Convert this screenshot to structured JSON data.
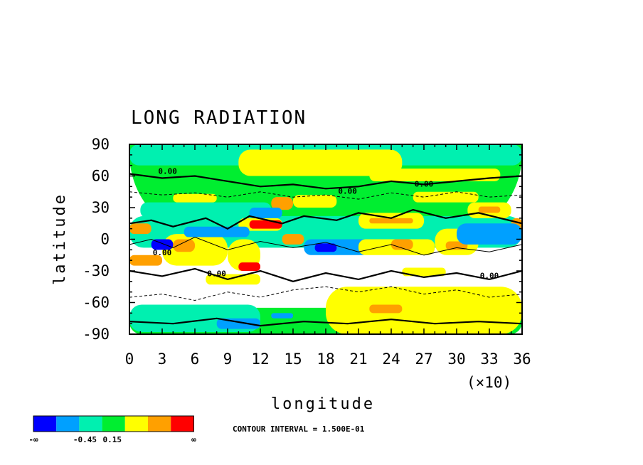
{
  "chart_data": {
    "type": "heatmap",
    "title": "LONG RADIATION",
    "xlabel": "longitude",
    "ylabel": "latitude",
    "x_multiplier_label": "(×10)",
    "x_ticks": [
      "0",
      "3",
      "6",
      "9",
      "12",
      "15",
      "18",
      "21",
      "24",
      "27",
      "30",
      "33",
      "36"
    ],
    "y_ticks": [
      "90",
      "60",
      "30",
      "0",
      "-30",
      "-60",
      "-90"
    ],
    "xlim": [
      0,
      36
    ],
    "ylim": [
      -90,
      90
    ],
    "contour_interval_text": "CONTOUR INTERVAL = 1.500E-01",
    "contour_line_labels": [
      "0.00",
      "0.00",
      "0.00",
      "0.00",
      "0.00",
      "0.00"
    ],
    "colorbar": {
      "colors": [
        "#0000ff",
        "#00a0ff",
        "#00f0b0",
        "#00ee30",
        "#ffff00",
        "#ffa000",
        "#ff0000"
      ],
      "labels": [
        "-∞",
        "-0.45",
        "0.15",
        "∞"
      ]
    },
    "regions": [
      {
        "lon": 0,
        "lat": 0,
        "w": 36,
        "h": 180,
        "level": 3
      },
      {
        "lon": 0,
        "lat": 70,
        "w": 36,
        "h": 20,
        "level": 2
      },
      {
        "lon": 0,
        "lat": -90,
        "w": 36,
        "h": 25,
        "level": 3
      },
      {
        "lon": 10,
        "lat": 60,
        "w": 15,
        "h": 25,
        "level": 4
      },
      {
        "lon": 22,
        "lat": 55,
        "w": 12,
        "h": 12,
        "level": 4
      },
      {
        "lon": 18,
        "lat": -90,
        "w": 18,
        "h": 45,
        "level": 4
      },
      {
        "lon": 22,
        "lat": -70,
        "w": 3,
        "h": 8,
        "level": 5
      },
      {
        "lon": 0,
        "lat": -8,
        "w": 36,
        "h": 30,
        "level": 2
      },
      {
        "lon": 0,
        "lat": -88,
        "w": 12,
        "h": 26,
        "level": 2
      },
      {
        "lon": 1,
        "lat": 20,
        "w": 12,
        "h": 15,
        "level": 2
      },
      {
        "lon": 3,
        "lat": -25,
        "w": 6,
        "h": 30,
        "level": 4
      },
      {
        "lon": 9,
        "lat": -30,
        "w": 3,
        "h": 30,
        "level": 4
      },
      {
        "lon": 0,
        "lat": 5,
        "w": 2,
        "h": 10,
        "level": 5
      },
      {
        "lon": 0,
        "lat": -25,
        "w": 3,
        "h": 10,
        "level": 5
      },
      {
        "lon": 4,
        "lat": -12,
        "w": 2,
        "h": 12,
        "level": 5
      },
      {
        "lon": 10,
        "lat": -30,
        "w": 2,
        "h": 8,
        "level": 6
      },
      {
        "lon": 10,
        "lat": 8,
        "w": 4,
        "h": 12,
        "level": 4
      },
      {
        "lon": 11,
        "lat": 10,
        "w": 3,
        "h": 8,
        "level": 6
      },
      {
        "lon": 13,
        "lat": 28,
        "w": 2,
        "h": 12,
        "level": 5
      },
      {
        "lon": 14,
        "lat": -5,
        "w": 2,
        "h": 10,
        "level": 5
      },
      {
        "lon": 16,
        "lat": -15,
        "w": 6,
        "h": 15,
        "level": 1
      },
      {
        "lon": 17,
        "lat": -12,
        "w": 2,
        "h": 8,
        "level": 0
      },
      {
        "lon": 5,
        "lat": 2,
        "w": 6,
        "h": 10,
        "level": 1
      },
      {
        "lon": 2,
        "lat": -10,
        "w": 2,
        "h": 10,
        "level": 0
      },
      {
        "lon": 11,
        "lat": 20,
        "w": 3,
        "h": 10,
        "level": 1
      },
      {
        "lon": 21,
        "lat": 10,
        "w": 6,
        "h": 15,
        "level": 4
      },
      {
        "lon": 22,
        "lat": 15,
        "w": 4,
        "h": 5,
        "level": 5
      },
      {
        "lon": 21,
        "lat": -15,
        "w": 7,
        "h": 15,
        "level": 4
      },
      {
        "lon": 24,
        "lat": -10,
        "w": 2,
        "h": 10,
        "level": 5
      },
      {
        "lon": 28,
        "lat": -15,
        "w": 4,
        "h": 25,
        "level": 4
      },
      {
        "lon": 29,
        "lat": -10,
        "w": 2,
        "h": 8,
        "level": 5
      },
      {
        "lon": 31,
        "lat": 20,
        "w": 4,
        "h": 15,
        "level": 4
      },
      {
        "lon": 32,
        "lat": 25,
        "w": 2,
        "h": 6,
        "level": 5
      },
      {
        "lon": 35,
        "lat": 5,
        "w": 1,
        "h": 15,
        "level": 5
      },
      {
        "lon": 30,
        "lat": -5,
        "w": 6,
        "h": 20,
        "level": 1
      },
      {
        "lon": 25,
        "lat": -35,
        "w": 4,
        "h": 8,
        "level": 4
      },
      {
        "lon": 26,
        "lat": 35,
        "w": 6,
        "h": 10,
        "level": 4
      },
      {
        "lon": 4,
        "lat": 35,
        "w": 4,
        "h": 8,
        "level": 4
      },
      {
        "lon": 15,
        "lat": 30,
        "w": 4,
        "h": 12,
        "level": 4
      },
      {
        "lon": 7,
        "lat": -43,
        "w": 5,
        "h": 10,
        "level": 4
      },
      {
        "lon": 8,
        "lat": -85,
        "w": 4,
        "h": 10,
        "level": 1
      },
      {
        "lon": 13,
        "lat": -75,
        "w": 2,
        "h": 5,
        "level": 1
      }
    ],
    "contour_segments": [
      [
        [
          0,
          62
        ],
        [
          3,
          58
        ],
        [
          6,
          60
        ],
        [
          9,
          55
        ],
        [
          12,
          50
        ],
        [
          15,
          52
        ],
        [
          18,
          48
        ],
        [
          21,
          50
        ],
        [
          24,
          55
        ],
        [
          27,
          52
        ],
        [
          30,
          55
        ],
        [
          33,
          58
        ],
        [
          36,
          60
        ]
      ],
      [
        [
          0,
          45
        ],
        [
          3,
          42
        ],
        [
          6,
          44
        ],
        [
          9,
          40
        ],
        [
          12,
          45
        ],
        [
          15,
          40
        ],
        [
          18,
          42
        ],
        [
          21,
          38
        ],
        [
          24,
          44
        ],
        [
          27,
          40
        ],
        [
          30,
          45
        ],
        [
          33,
          40
        ],
        [
          36,
          42
        ]
      ],
      [
        [
          0,
          15
        ],
        [
          2,
          18
        ],
        [
          4,
          12
        ],
        [
          7,
          20
        ],
        [
          9,
          10
        ],
        [
          11,
          22
        ],
        [
          14,
          15
        ],
        [
          16,
          22
        ],
        [
          19,
          18
        ],
        [
          21,
          25
        ],
        [
          24,
          20
        ],
        [
          26,
          28
        ],
        [
          29,
          20
        ],
        [
          32,
          25
        ],
        [
          36,
          15
        ]
      ],
      [
        [
          0,
          -5
        ],
        [
          2,
          0
        ],
        [
          4,
          -8
        ],
        [
          6,
          2
        ],
        [
          9,
          -10
        ],
        [
          12,
          -2
        ],
        [
          15,
          -8
        ],
        [
          18,
          -3
        ],
        [
          21,
          -12
        ],
        [
          24,
          -5
        ],
        [
          27,
          -15
        ],
        [
          30,
          -8
        ],
        [
          33,
          -12
        ],
        [
          36,
          -5
        ]
      ],
      [
        [
          0,
          -30
        ],
        [
          3,
          -35
        ],
        [
          6,
          -28
        ],
        [
          9,
          -38
        ],
        [
          12,
          -30
        ],
        [
          15,
          -40
        ],
        [
          18,
          -32
        ],
        [
          21,
          -38
        ],
        [
          24,
          -30
        ],
        [
          27,
          -36
        ],
        [
          30,
          -32
        ],
        [
          33,
          -38
        ],
        [
          36,
          -30
        ]
      ],
      [
        [
          0,
          -55
        ],
        [
          3,
          -52
        ],
        [
          6,
          -58
        ],
        [
          9,
          -50
        ],
        [
          12,
          -55
        ],
        [
          15,
          -48
        ],
        [
          18,
          -45
        ],
        [
          21,
          -50
        ],
        [
          24,
          -45
        ],
        [
          27,
          -52
        ],
        [
          30,
          -48
        ],
        [
          33,
          -55
        ],
        [
          36,
          -52
        ]
      ],
      [
        [
          0,
          -78
        ],
        [
          4,
          -80
        ],
        [
          8,
          -75
        ],
        [
          12,
          -82
        ],
        [
          16,
          -78
        ],
        [
          20,
          -80
        ],
        [
          24,
          -76
        ],
        [
          28,
          -80
        ],
        [
          32,
          -78
        ],
        [
          36,
          -80
        ]
      ]
    ],
    "contour_label_positions": [
      [
        3.5,
        62
      ],
      [
        20,
        43
      ],
      [
        27,
        50
      ],
      [
        3,
        -15
      ],
      [
        8,
        -35
      ],
      [
        33,
        -37
      ]
    ]
  }
}
